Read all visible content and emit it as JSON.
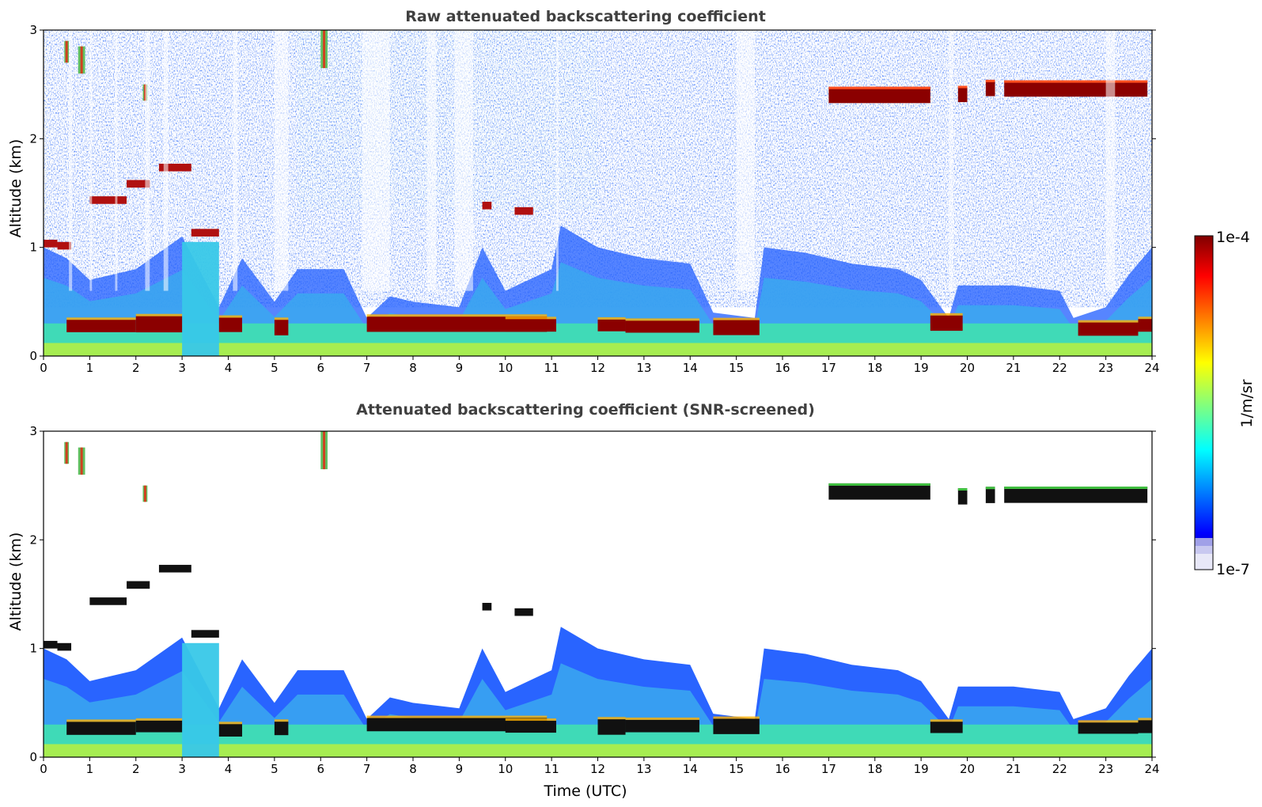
{
  "chart_data": [
    {
      "type": "heatmap",
      "title": "Raw attenuated backscattering coefficient",
      "ylabel": "Altitude (km)",
      "xlabel": "",
      "xlim": [
        0,
        24
      ],
      "ylim": [
        0,
        3
      ],
      "xticks": [
        "0",
        "1",
        "2",
        "3",
        "4",
        "5",
        "6",
        "7",
        "8",
        "9",
        "10",
        "11",
        "12",
        "13",
        "14",
        "15",
        "16",
        "17",
        "18",
        "19",
        "20",
        "21",
        "22",
        "23",
        "24"
      ],
      "yticks": [
        "0",
        "1",
        "2",
        "3"
      ],
      "features": {
        "surface_aerosol_top_km": 0.3,
        "low_cloud_layer_km": [
          0.2,
          0.35
        ],
        "mid_cloud_layer_km": [
          1.0,
          1.8
        ],
        "high_cloud_layer_km": [
          2.25,
          2.55
        ],
        "high_cloud_time_ranges_h": [
          [
            17.0,
            19.2
          ],
          [
            19.8,
            20.0
          ],
          [
            20.4,
            20.6
          ],
          [
            20.8,
            23.9
          ]
        ]
      }
    },
    {
      "type": "heatmap",
      "title": "Attenuated backscattering coefficient (SNR-screened)",
      "ylabel": "Altitude (km)",
      "xlabel": "Time (UTC)",
      "xlim": [
        0,
        24
      ],
      "ylim": [
        0,
        3
      ],
      "xticks": [
        "0",
        "1",
        "2",
        "3",
        "4",
        "5",
        "6",
        "7",
        "8",
        "9",
        "10",
        "11",
        "12",
        "13",
        "14",
        "15",
        "16",
        "17",
        "18",
        "19",
        "20",
        "21",
        "22",
        "23",
        "24"
      ],
      "yticks": [
        "0",
        "1",
        "2",
        "3"
      ]
    }
  ],
  "colorbar": {
    "max_label": "1e-4",
    "min_label": "1e-7",
    "unit_label": "1/m/sr",
    "scale": "log",
    "colormap": "jet",
    "low_colors": [
      "#e8e8f8",
      "#c8c8f0",
      "#a0a0e8"
    ]
  }
}
